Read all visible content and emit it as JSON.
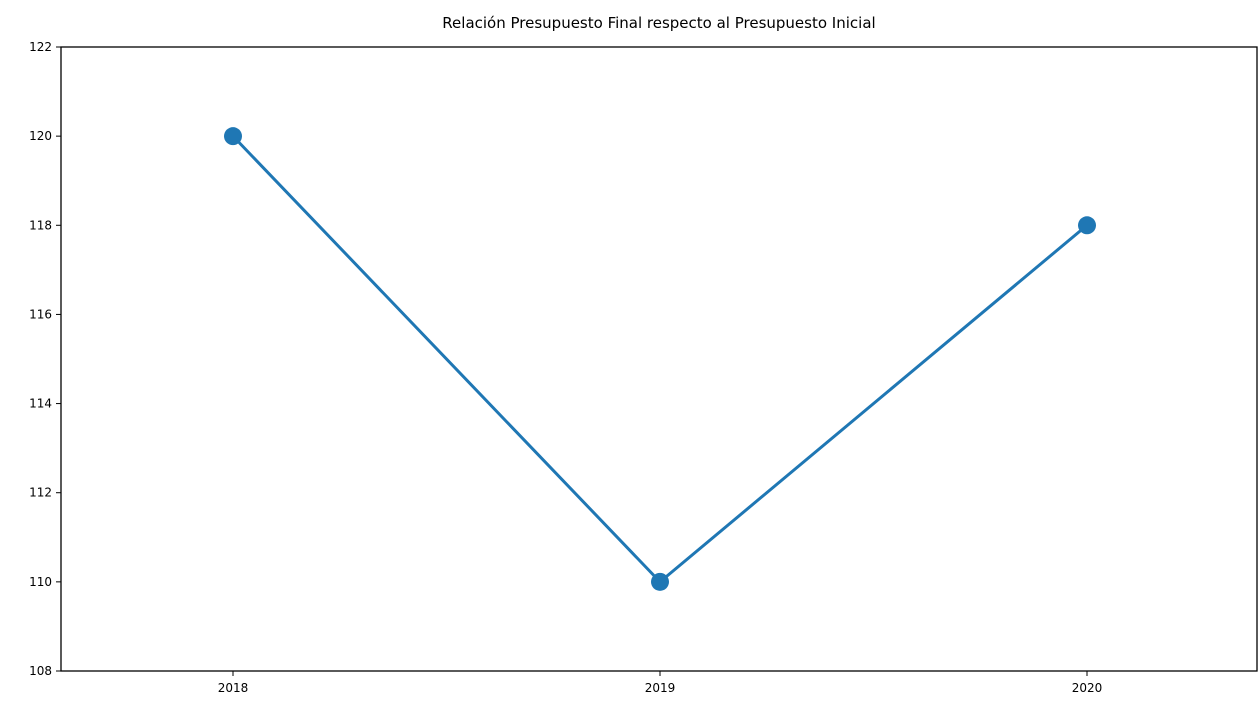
{
  "chart_data": {
    "type": "line",
    "title": "Relación Presupuesto Final respecto al Presupuesto Inicial",
    "xlabel": "",
    "ylabel": "",
    "categories": [
      "2018",
      "2019",
      "2020"
    ],
    "series": [
      {
        "values": [
          120,
          110,
          118
        ],
        "color": "#1f77b4",
        "marker": "circle"
      }
    ],
    "ylim": [
      108,
      122
    ],
    "yticks": [
      108,
      110,
      112,
      114,
      116,
      118,
      120,
      122
    ],
    "grid": false,
    "legend": "none"
  }
}
